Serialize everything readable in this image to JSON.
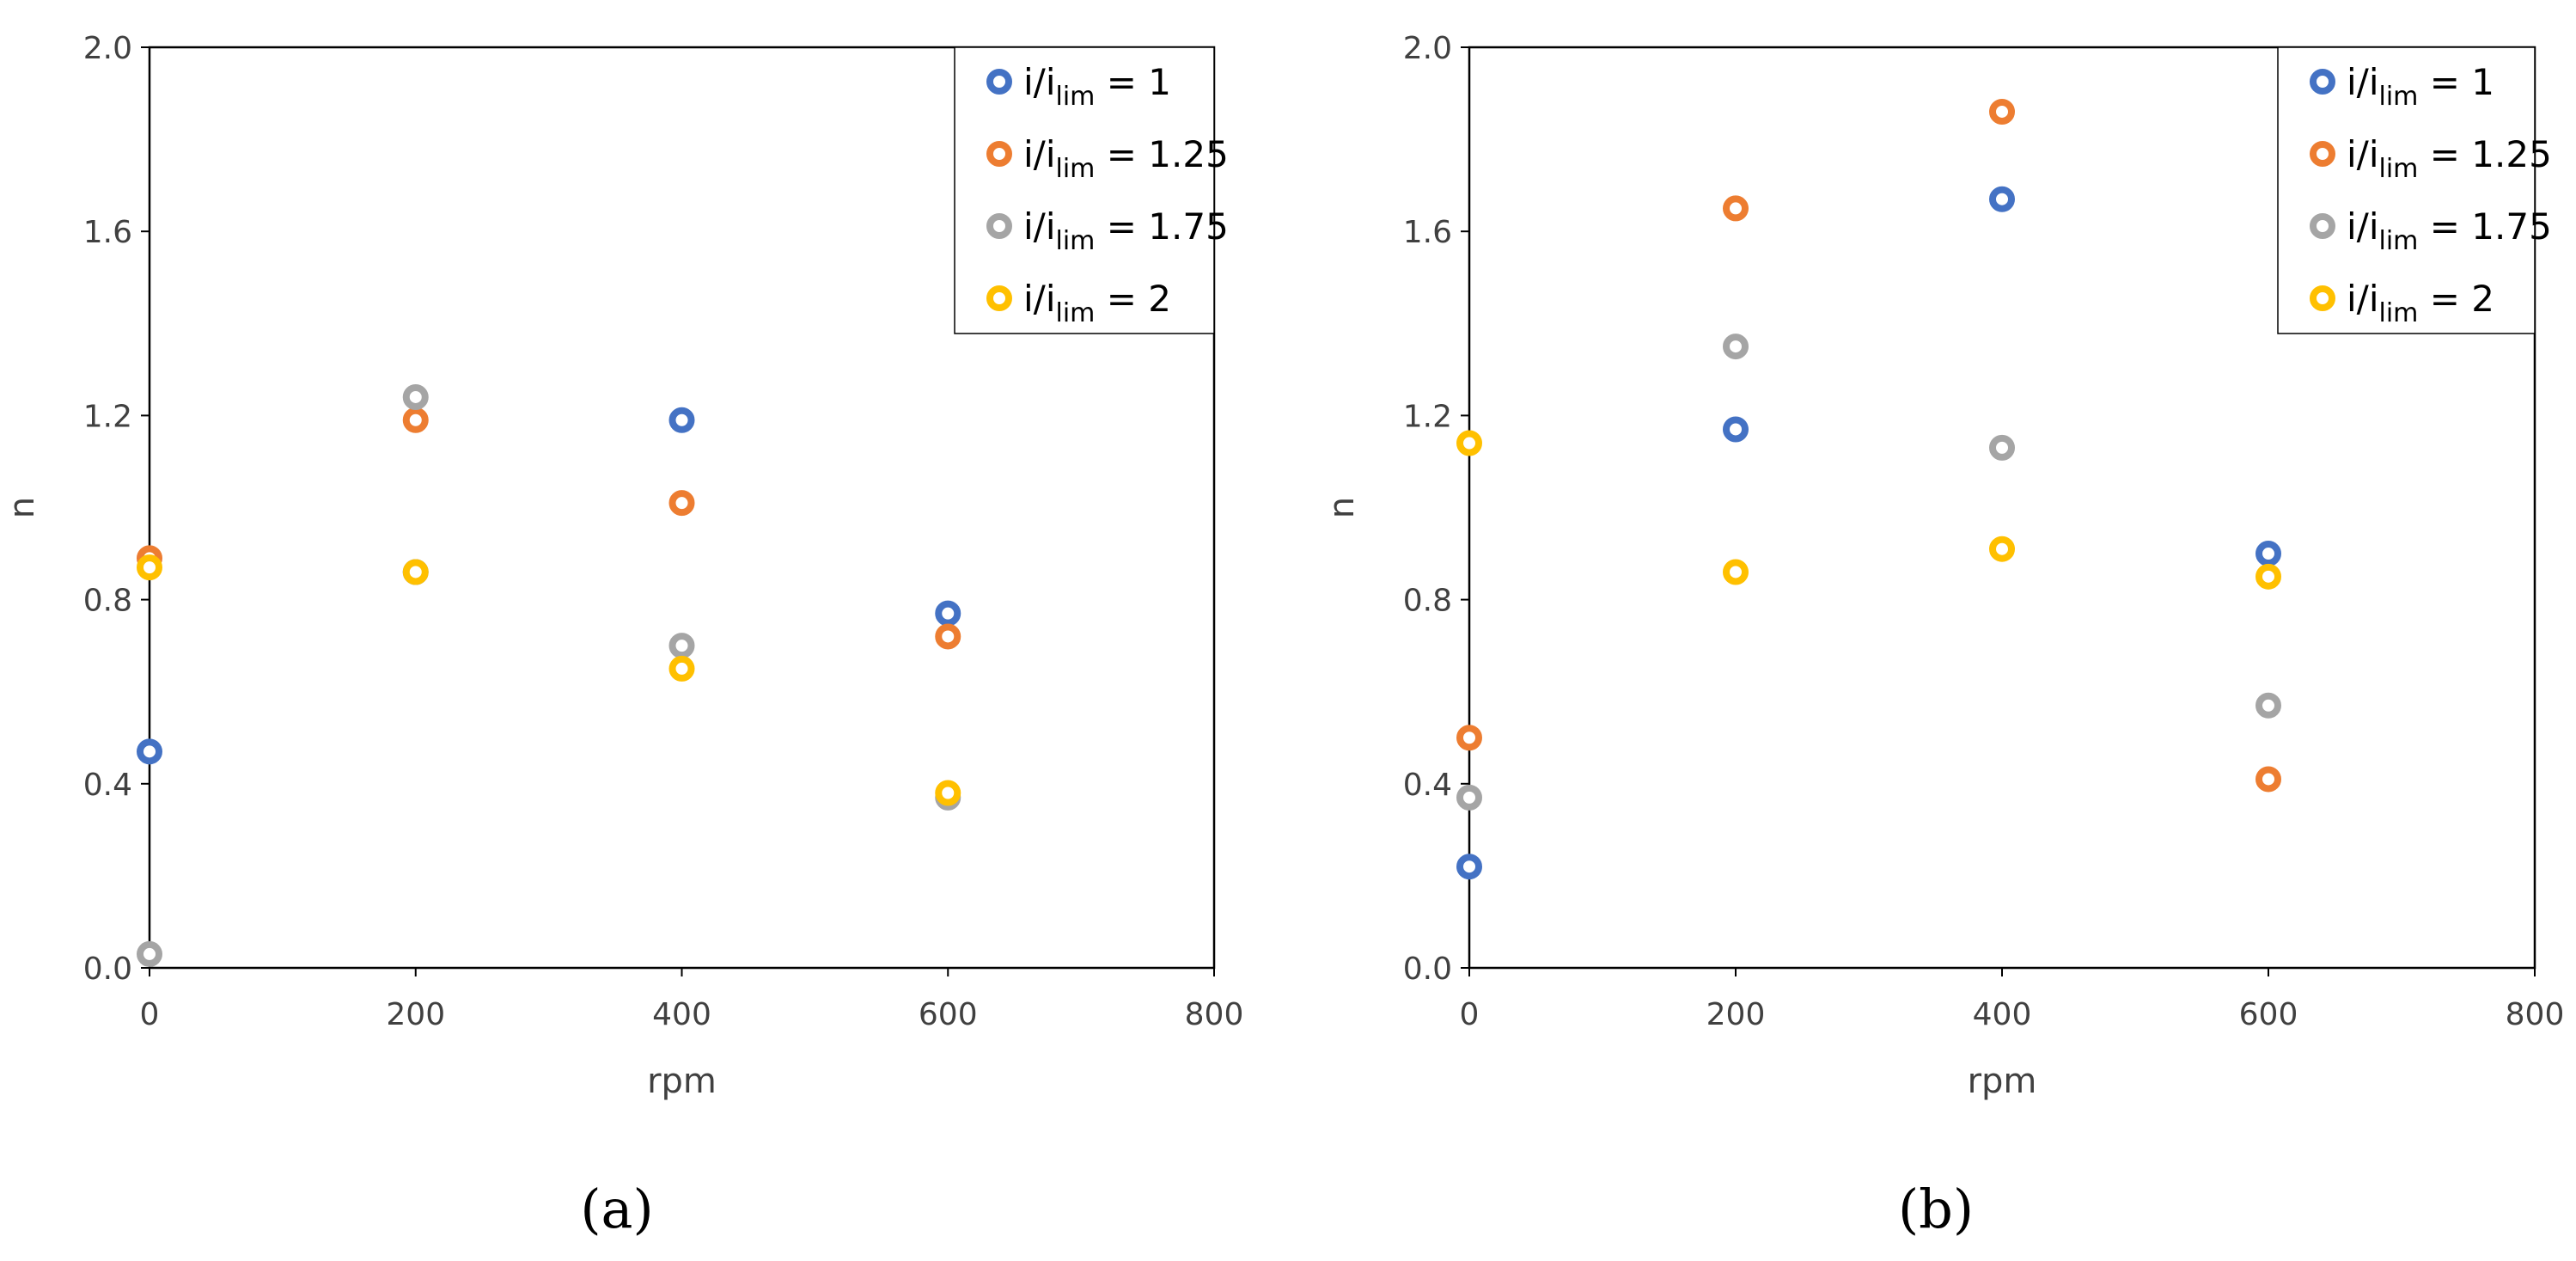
{
  "chart_data": [
    {
      "type": "scatter",
      "panel_label": "(a)",
      "xlabel": "rpm",
      "ylabel": "n",
      "xlim": [
        0,
        800
      ],
      "ylim": [
        0.0,
        2.0
      ],
      "xticks": [
        "0",
        "200",
        "400",
        "600",
        "800"
      ],
      "yticks": [
        "0.0",
        "0.4",
        "0.8",
        "1.2",
        "1.6",
        "2.0"
      ],
      "legend_position": "top-right",
      "series": [
        {
          "name": "i/ilim = 1",
          "legend_base": "i/i",
          "legend_sub": "lim",
          "legend_tail": " = 1",
          "color": "#4472C4",
          "points": [
            [
              0,
              0.47
            ],
            [
              200,
              0.86
            ],
            [
              400,
              1.19
            ],
            [
              600,
              0.77
            ]
          ]
        },
        {
          "name": "i/ilim = 1.25",
          "legend_base": "i/i",
          "legend_sub": "lim",
          "legend_tail": " = 1.25",
          "color": "#ED7D31",
          "points": [
            [
              0,
              0.89
            ],
            [
              200,
              1.19
            ],
            [
              400,
              1.01
            ],
            [
              600,
              0.72
            ]
          ]
        },
        {
          "name": "i/ilim = 1.75",
          "legend_base": "i/i",
          "legend_sub": "lim",
          "legend_tail": " = 1.75",
          "color": "#A5A5A5",
          "points": [
            [
              0,
              0.03
            ],
            [
              200,
              1.24
            ],
            [
              400,
              0.7
            ],
            [
              600,
              0.37
            ]
          ]
        },
        {
          "name": "i/ilim = 2",
          "legend_base": "i/i",
          "legend_sub": "lim",
          "legend_tail": " = 2",
          "color": "#FFC000",
          "points": [
            [
              0,
              0.87
            ],
            [
              200,
              0.86
            ],
            [
              400,
              0.65
            ],
            [
              600,
              0.38
            ]
          ]
        }
      ]
    },
    {
      "type": "scatter",
      "panel_label": "(b)",
      "xlabel": "rpm",
      "ylabel": "n",
      "xlim": [
        0,
        800
      ],
      "ylim": [
        0.0,
        2.0
      ],
      "xticks": [
        "0",
        "200",
        "400",
        "600",
        "800"
      ],
      "yticks": [
        "0.0",
        "0.4",
        "0.8",
        "1.2",
        "1.6",
        "2.0"
      ],
      "legend_position": "top-right",
      "series": [
        {
          "name": "i/ilim = 1",
          "legend_base": "i/i",
          "legend_sub": "lim",
          "legend_tail": " = 1",
          "color": "#4472C4",
          "points": [
            [
              0,
              0.22
            ],
            [
              200,
              1.17
            ],
            [
              400,
              1.67
            ],
            [
              600,
              0.9
            ]
          ]
        },
        {
          "name": "i/ilim = 1.25",
          "legend_base": "i/i",
          "legend_sub": "lim",
          "legend_tail": " = 1.25",
          "color": "#ED7D31",
          "points": [
            [
              0,
              0.5
            ],
            [
              200,
              1.65
            ],
            [
              400,
              1.86
            ],
            [
              600,
              0.41
            ]
          ]
        },
        {
          "name": "i/ilim = 1.75",
          "legend_base": "i/i",
          "legend_sub": "lim",
          "legend_tail": " = 1.75",
          "color": "#A5A5A5",
          "points": [
            [
              0,
              0.37
            ],
            [
              200,
              1.35
            ],
            [
              400,
              1.13
            ],
            [
              600,
              0.57
            ]
          ]
        },
        {
          "name": "i/ilim = 2",
          "legend_base": "i/i",
          "legend_sub": "lim",
          "legend_tail": " = 2",
          "color": "#FFC000",
          "points": [
            [
              0,
              1.14
            ],
            [
              200,
              0.86
            ],
            [
              400,
              0.91
            ],
            [
              600,
              0.85
            ]
          ]
        }
      ]
    }
  ]
}
